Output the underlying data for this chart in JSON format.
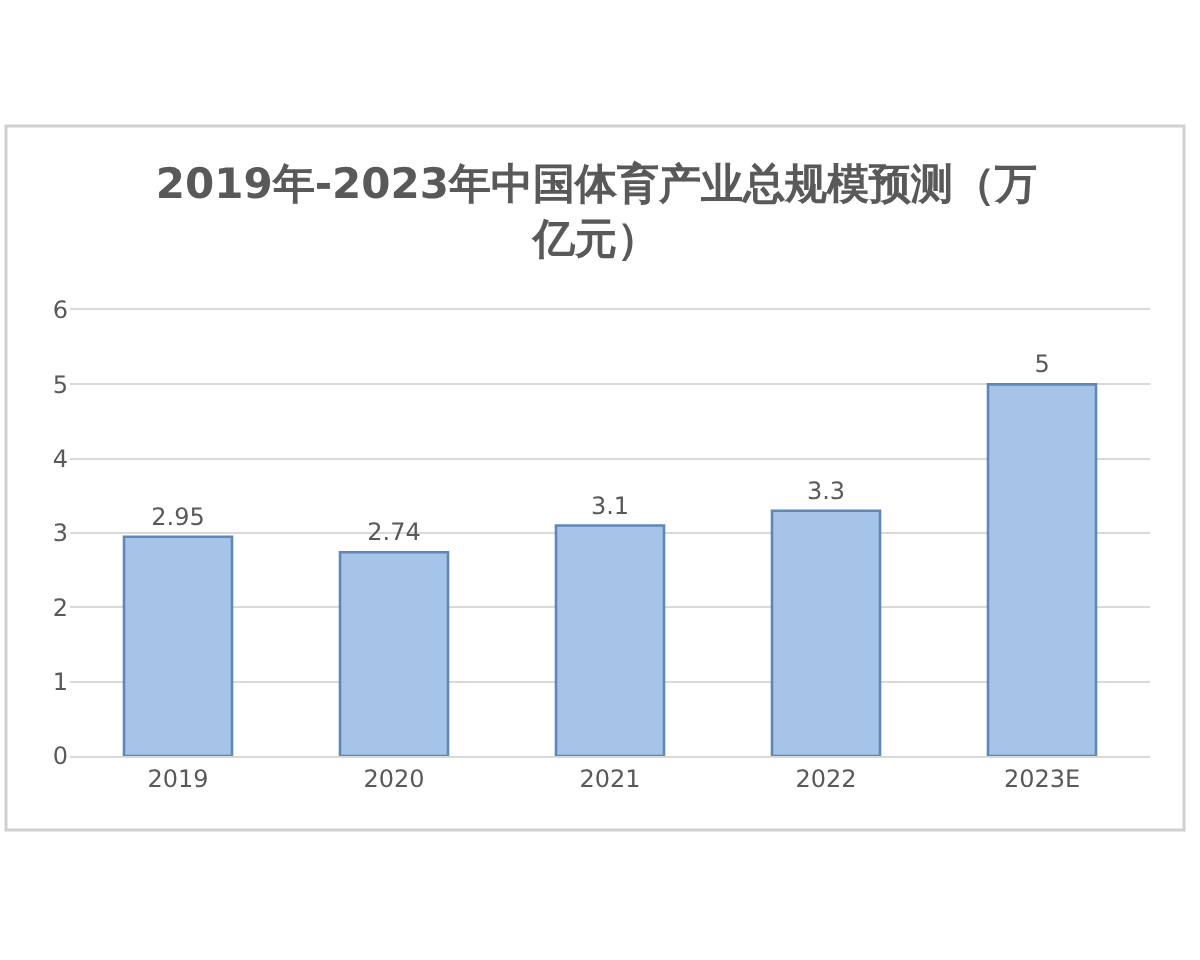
{
  "chart_data": {
    "type": "bar",
    "title": "2019年-2023年中国体育产业总规模预测（万亿元）",
    "categories": [
      "2019",
      "2020",
      "2021",
      "2022",
      "2023E"
    ],
    "values": [
      2.95,
      2.74,
      3.1,
      3.3,
      5
    ],
    "color": "#a6c3e8",
    "ylim": [
      0,
      6
    ],
    "yticks": [
      0,
      1,
      2,
      3,
      4,
      5,
      6
    ],
    "grid": "y",
    "data_labels": true
  }
}
